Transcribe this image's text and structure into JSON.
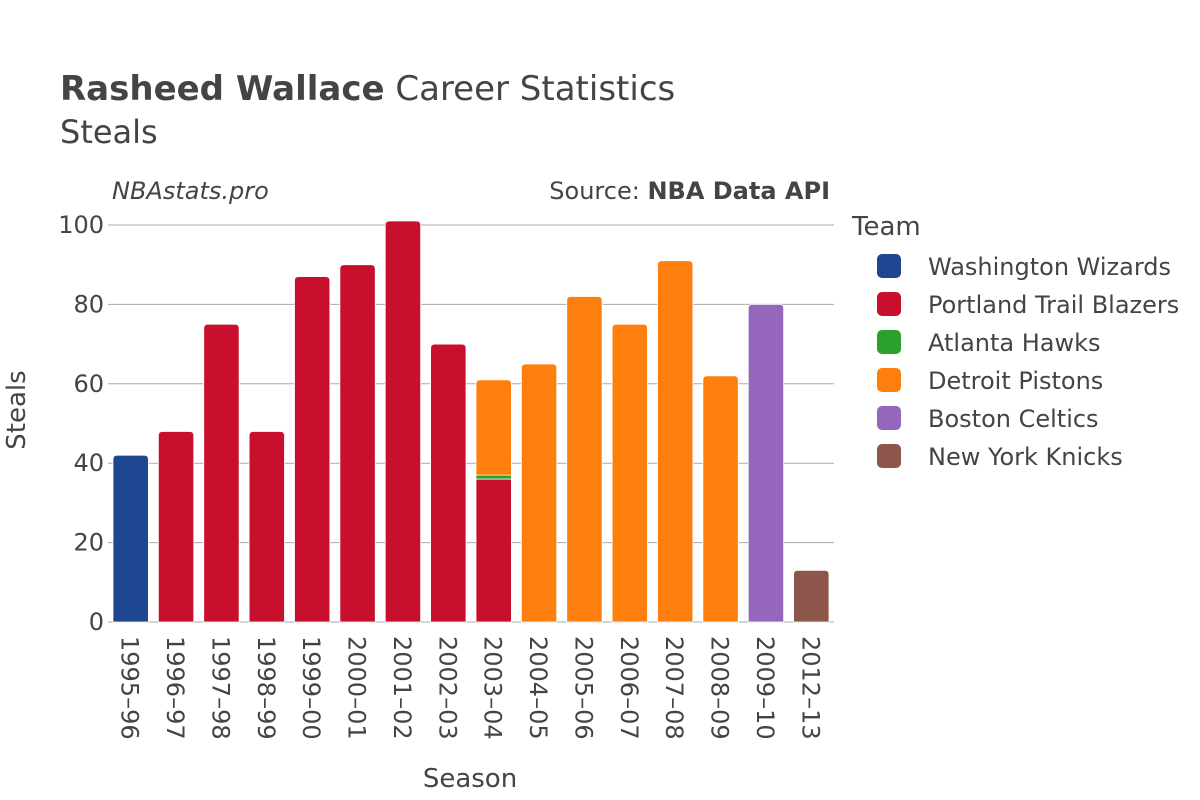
{
  "title": {
    "player": "Rasheed Wallace",
    "rest": " Career Statistics",
    "subtitle": "Steals"
  },
  "watermark": "NBAstats.pro",
  "source": {
    "prefix": "Source: ",
    "name": "NBA Data API"
  },
  "legend": {
    "title": "Team",
    "placement": "right",
    "items": [
      {
        "name": "Washington Wizards",
        "color": "#1f4690"
      },
      {
        "name": "Portland Trail Blazers",
        "color": "#c8102e"
      },
      {
        "name": "Atlanta Hawks",
        "color": "#2ca02c"
      },
      {
        "name": "Detroit Pistons",
        "color": "#ff7f0e"
      },
      {
        "name": "Boston Celtics",
        "color": "#9467bd"
      },
      {
        "name": "New York Knicks",
        "color": "#8c564b"
      }
    ]
  },
  "chart_data": {
    "type": "bar",
    "stacked": true,
    "xlabel": "Season",
    "ylabel": "Steals",
    "ylim": [
      0,
      100
    ],
    "yticks": [
      0,
      20,
      40,
      60,
      80,
      100
    ],
    "grid": true,
    "categories": [
      "1995–96",
      "1996–97",
      "1997–98",
      "1998–99",
      "1999–00",
      "2000–01",
      "2001–02",
      "2002–03",
      "2003–04",
      "2004–05",
      "2005–06",
      "2006–07",
      "2007–08",
      "2008–09",
      "2009–10",
      "2012–13"
    ],
    "series": [
      {
        "name": "Washington Wizards",
        "color": "#1f4690",
        "values": [
          42,
          0,
          0,
          0,
          0,
          0,
          0,
          0,
          0,
          0,
          0,
          0,
          0,
          0,
          0,
          0
        ]
      },
      {
        "name": "Portland Trail Blazers",
        "color": "#c8102e",
        "values": [
          0,
          48,
          75,
          48,
          87,
          90,
          101,
          70,
          36,
          0,
          0,
          0,
          0,
          0,
          0,
          0
        ]
      },
      {
        "name": "Atlanta Hawks",
        "color": "#2ca02c",
        "values": [
          0,
          0,
          0,
          0,
          0,
          0,
          0,
          0,
          1,
          0,
          0,
          0,
          0,
          0,
          0,
          0
        ]
      },
      {
        "name": "Detroit Pistons",
        "color": "#ff7f0e",
        "values": [
          0,
          0,
          0,
          0,
          0,
          0,
          0,
          0,
          24,
          65,
          82,
          75,
          91,
          62,
          0,
          0
        ]
      },
      {
        "name": "Boston Celtics",
        "color": "#9467bd",
        "values": [
          0,
          0,
          0,
          0,
          0,
          0,
          0,
          0,
          0,
          0,
          0,
          0,
          0,
          0,
          80,
          0
        ]
      },
      {
        "name": "New York Knicks",
        "color": "#8c564b",
        "values": [
          0,
          0,
          0,
          0,
          0,
          0,
          0,
          0,
          0,
          0,
          0,
          0,
          0,
          0,
          0,
          13
        ]
      }
    ]
  }
}
